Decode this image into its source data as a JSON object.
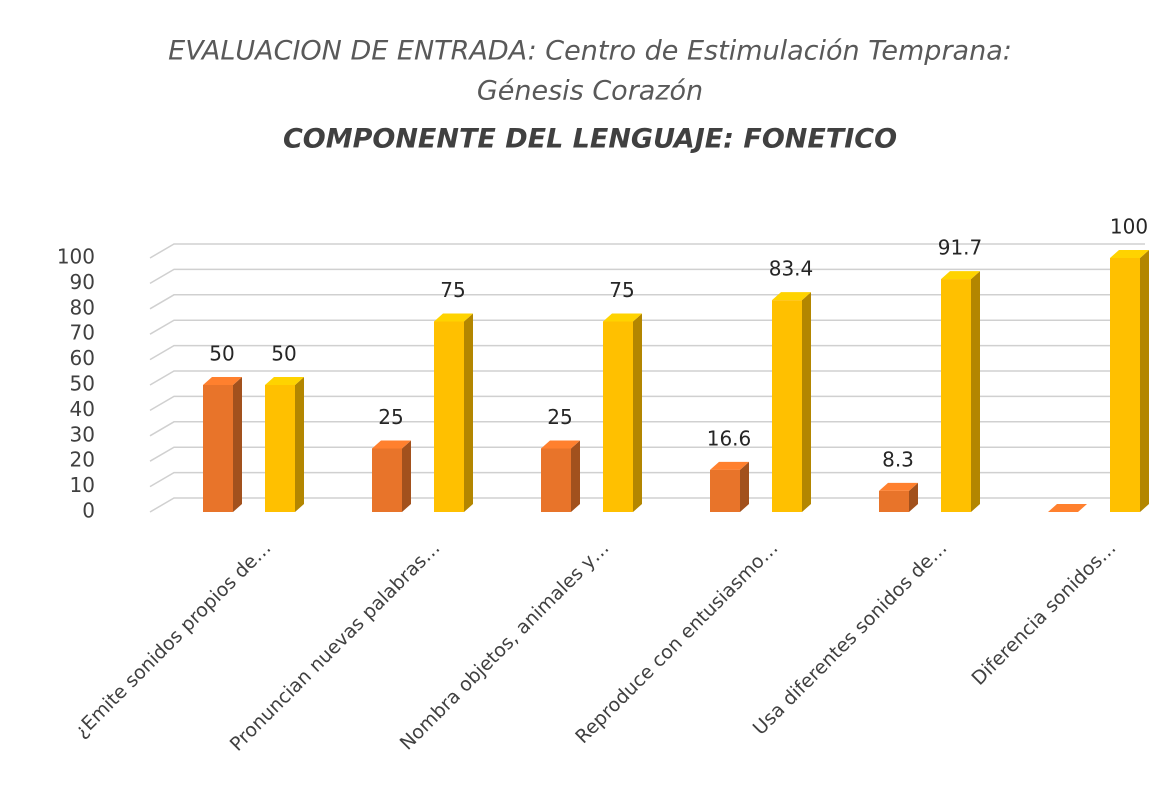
{
  "chart_data": {
    "type": "bar3d",
    "title": [
      "EVALUACION DE ENTRADA:  Centro de Estimulación Temprana:",
      "Génesis Corazón"
    ],
    "subtitle": "COMPONENTE DEL LENGUAJE: FONETICO",
    "categories": [
      "¿Emite sonidos propios de…",
      "Pronuncian nuevas palabras…",
      "Nombra objetos, animales y…",
      "Reproduce con entusiasmo…",
      "Usa diferentes sonidos de…",
      "Diferencia  sonidos…"
    ],
    "series": [
      {
        "color": "#e8742a",
        "values": [
          50,
          25,
          25,
          16.6,
          8.3,
          0
        ],
        "value_labels": [
          "50",
          "25",
          "25",
          "16.6",
          "8.3",
          null
        ]
      },
      {
        "color": "#ffc000",
        "values": [
          50,
          75,
          75,
          83.4,
          91.7,
          100
        ]
      }
    ],
    "ylim": [
      0,
      100
    ],
    "yticks": [
      0,
      10,
      20,
      30,
      40,
      50,
      60,
      70,
      80,
      90,
      100
    ],
    "grid": true
  }
}
